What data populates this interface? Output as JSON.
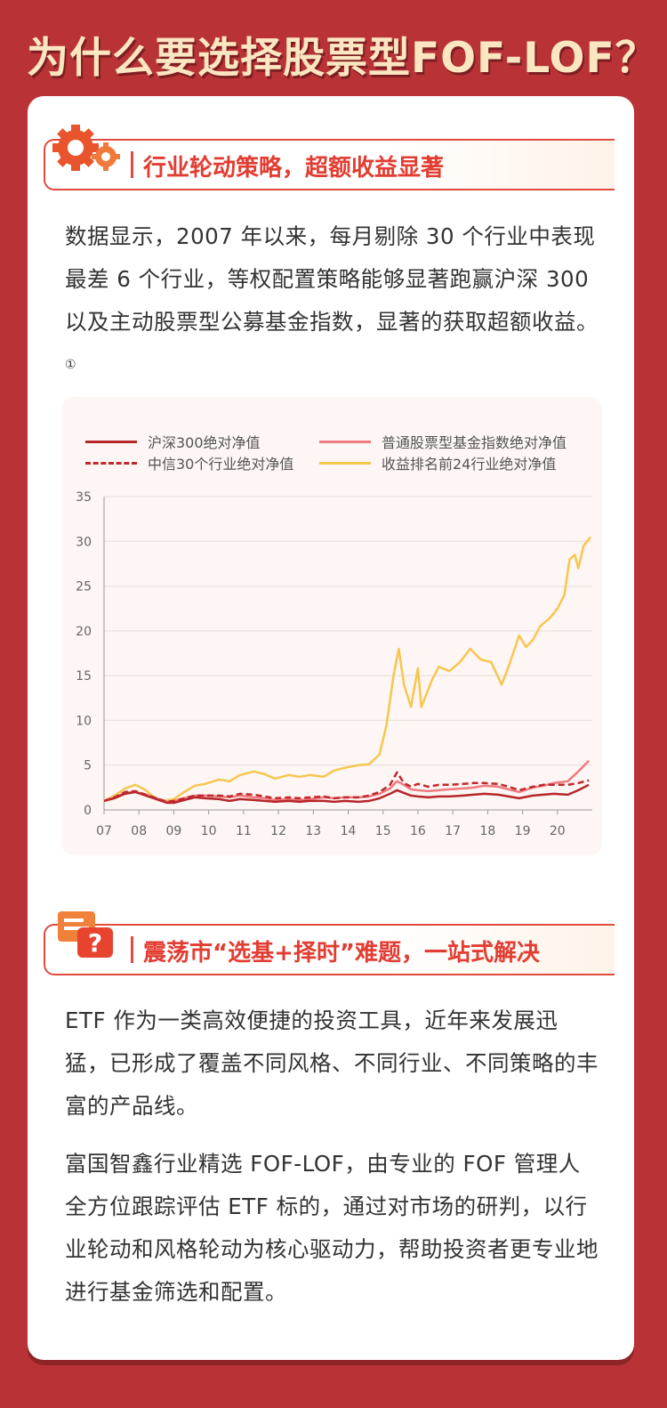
{
  "page_title": "为什么要选择股票型FOF-LOF？",
  "section1": {
    "heading": "行业轮动策略，超额收益显著",
    "paragraph": "数据显示，2007 年以来，每月剔除 30 个行业中表现最差 6 个行业，等权配置策略能够显著跑赢沪深 300 以及主动股票型公募基金指数，显著的获取超额收益。",
    "note_mark": "①"
  },
  "section2": {
    "heading": "震荡市“选基+择时”难题，一站式解决",
    "paragraph1": "ETF 作为一类高效便捷的投资工具，近年来发展迅猛，已形成了覆盖不同风格、不同行业、不同策略的丰富的产品线。",
    "paragraph2": "富国智鑫行业精选 FOF-LOF，由专业的 FOF 管理人全方位跟踪评估 ETF 标的，通过对市场的研判，以行业轮动和风格轮动为核心驱动力，帮助投资者更专业地进行基金筛选和配置。"
  },
  "colors": {
    "background": "#b93336",
    "accent": "#e23d32",
    "hs300": "#b5262a",
    "fund_index": "#ef7a7f",
    "citic30": "#c0282c",
    "top24": "#f7c64f"
  },
  "chart_data": {
    "type": "line",
    "title": "",
    "xlabel": "",
    "ylabel": "",
    "categories": [
      "07",
      "08",
      "09",
      "10",
      "11",
      "12",
      "13",
      "14",
      "15",
      "16",
      "17",
      "18",
      "19",
      "20"
    ],
    "xlim": [
      2007,
      2021
    ],
    "ylim": [
      0,
      35
    ],
    "yticks": [
      0,
      5,
      10,
      15,
      20,
      25,
      30,
      35
    ],
    "grid": true,
    "legend_position": "top",
    "series": [
      {
        "name": "沪深300绝对净值",
        "color": "#b5262a",
        "style": "solid",
        "x": [
          2007.0,
          2007.3,
          2007.6,
          2007.9,
          2008.2,
          2008.5,
          2008.8,
          2009.0,
          2009.3,
          2009.6,
          2009.9,
          2010.3,
          2010.6,
          2010.9,
          2011.3,
          2011.6,
          2011.9,
          2012.3,
          2012.6,
          2012.9,
          2013.3,
          2013.6,
          2013.9,
          2014.3,
          2014.6,
          2014.9,
          2015.2,
          2015.4,
          2015.6,
          2015.8,
          2016.0,
          2016.3,
          2016.6,
          2016.9,
          2017.3,
          2017.6,
          2017.9,
          2018.3,
          2018.6,
          2018.9,
          2019.3,
          2019.6,
          2019.9,
          2020.3,
          2020.6,
          2020.9
        ],
        "y": [
          1.0,
          1.3,
          1.8,
          2.0,
          1.6,
          1.2,
          0.8,
          0.8,
          1.1,
          1.4,
          1.3,
          1.2,
          1.0,
          1.2,
          1.1,
          1.0,
          0.9,
          1.0,
          0.9,
          1.0,
          1.0,
          0.9,
          1.0,
          0.9,
          1.0,
          1.3,
          1.8,
          2.2,
          1.9,
          1.6,
          1.5,
          1.4,
          1.5,
          1.5,
          1.6,
          1.7,
          1.8,
          1.7,
          1.5,
          1.3,
          1.6,
          1.7,
          1.8,
          1.7,
          2.2,
          2.8
        ]
      },
      {
        "name": "普通股票型基金指数绝对净值",
        "color": "#ef7a7f",
        "style": "solid",
        "x": [
          2007.0,
          2007.3,
          2007.6,
          2007.9,
          2008.2,
          2008.5,
          2008.8,
          2009.0,
          2009.3,
          2009.6,
          2009.9,
          2010.3,
          2010.6,
          2010.9,
          2011.3,
          2011.6,
          2011.9,
          2012.3,
          2012.6,
          2012.9,
          2013.3,
          2013.6,
          2013.9,
          2014.3,
          2014.6,
          2014.9,
          2015.2,
          2015.4,
          2015.6,
          2015.8,
          2016.0,
          2016.3,
          2016.6,
          2016.9,
          2017.3,
          2017.6,
          2017.9,
          2018.3,
          2018.6,
          2018.9,
          2019.3,
          2019.6,
          2019.9,
          2020.3,
          2020.6,
          2020.9
        ],
        "y": [
          1.0,
          1.4,
          1.9,
          2.0,
          1.7,
          1.3,
          0.9,
          1.0,
          1.3,
          1.6,
          1.6,
          1.5,
          1.4,
          1.6,
          1.4,
          1.3,
          1.1,
          1.2,
          1.1,
          1.2,
          1.4,
          1.3,
          1.4,
          1.4,
          1.5,
          1.8,
          2.4,
          3.2,
          2.8,
          2.3,
          2.2,
          2.1,
          2.2,
          2.3,
          2.4,
          2.5,
          2.7,
          2.6,
          2.3,
          2.0,
          2.5,
          2.7,
          3.0,
          3.2,
          4.3,
          5.5
        ]
      },
      {
        "name": "中信30个行业绝对净值",
        "color": "#c0282c",
        "style": "dashed",
        "x": [
          2007.0,
          2007.3,
          2007.6,
          2007.9,
          2008.2,
          2008.5,
          2008.8,
          2009.0,
          2009.3,
          2009.6,
          2009.9,
          2010.3,
          2010.6,
          2010.9,
          2011.3,
          2011.6,
          2011.9,
          2012.3,
          2012.6,
          2012.9,
          2013.3,
          2013.6,
          2013.9,
          2014.3,
          2014.6,
          2014.9,
          2015.2,
          2015.4,
          2015.6,
          2015.8,
          2016.0,
          2016.3,
          2016.6,
          2016.9,
          2017.3,
          2017.6,
          2017.9,
          2018.3,
          2018.6,
          2018.9,
          2019.3,
          2019.6,
          2019.9,
          2020.3,
          2020.6,
          2020.9
        ],
        "y": [
          1.0,
          1.4,
          2.0,
          2.1,
          1.7,
          1.3,
          0.9,
          1.0,
          1.3,
          1.6,
          1.6,
          1.6,
          1.5,
          1.8,
          1.7,
          1.5,
          1.3,
          1.4,
          1.3,
          1.4,
          1.5,
          1.3,
          1.4,
          1.4,
          1.6,
          2.0,
          2.8,
          4.2,
          3.0,
          2.6,
          2.9,
          2.6,
          2.8,
          2.8,
          2.9,
          3.0,
          3.0,
          2.9,
          2.6,
          2.2,
          2.6,
          2.8,
          2.8,
          2.8,
          3.0,
          3.3
        ]
      },
      {
        "name": "收益排名前24行业绝对净值",
        "color": "#f7c64f",
        "style": "solid",
        "x": [
          2007.0,
          2007.3,
          2007.6,
          2007.9,
          2008.2,
          2008.4,
          2008.7,
          2009.0,
          2009.3,
          2009.6,
          2009.9,
          2010.3,
          2010.6,
          2010.9,
          2011.3,
          2011.6,
          2011.9,
          2012.3,
          2012.6,
          2012.9,
          2013.3,
          2013.6,
          2013.9,
          2014.3,
          2014.6,
          2014.9,
          2015.1,
          2015.3,
          2015.45,
          2015.6,
          2015.8,
          2016.0,
          2016.1,
          2016.25,
          2016.4,
          2016.6,
          2016.9,
          2017.2,
          2017.5,
          2017.8,
          2018.1,
          2018.4,
          2018.6,
          2018.9,
          2019.1,
          2019.3,
          2019.5,
          2019.8,
          2020.0,
          2020.2,
          2020.35,
          2020.5,
          2020.6,
          2020.75,
          2020.85,
          2020.95
        ],
        "y": [
          1.0,
          1.6,
          2.4,
          2.8,
          2.2,
          1.5,
          1.0,
          1.2,
          2.0,
          2.7,
          2.9,
          3.4,
          3.2,
          3.9,
          4.3,
          4.0,
          3.5,
          3.9,
          3.7,
          3.9,
          3.7,
          4.4,
          4.7,
          5.0,
          5.1,
          6.2,
          9.5,
          15.0,
          18.0,
          14.0,
          11.5,
          15.8,
          11.5,
          13.0,
          14.5,
          16.0,
          15.5,
          16.5,
          18.0,
          16.8,
          16.5,
          14.0,
          16.0,
          19.5,
          18.2,
          19.0,
          20.5,
          21.5,
          22.5,
          24.0,
          28.0,
          28.5,
          27.0,
          29.5,
          30.0,
          30.5
        ]
      }
    ]
  }
}
